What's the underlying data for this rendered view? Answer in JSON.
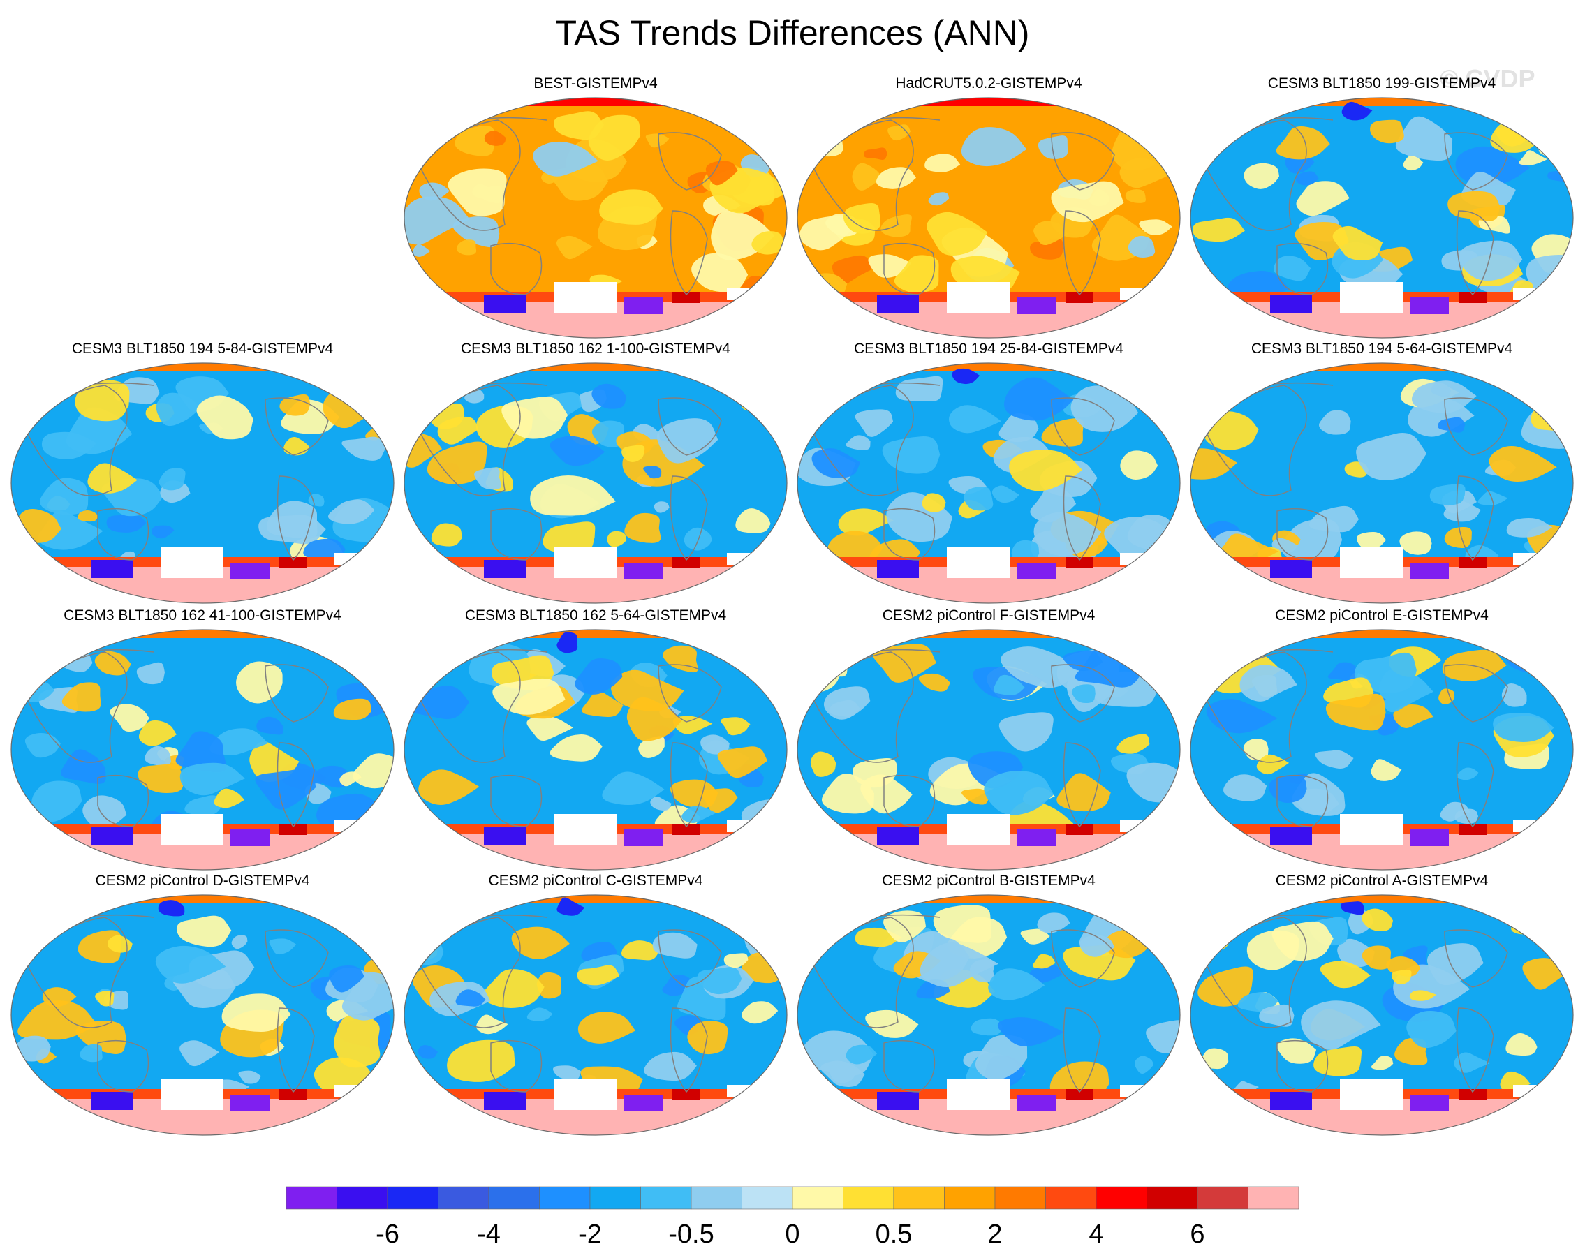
{
  "title": "TAS Trends Differences (ANN)",
  "watermark": "© CVDP",
  "colors": {
    "levels": [
      "#7f1ff0",
      "#3a0ff0",
      "#1a28f5",
      "#3a5ae0",
      "#2b70eb",
      "#1e90ff",
      "#12a8f2",
      "#40bdf5",
      "#8fcdef",
      "#bce2f5",
      "#fff9a8",
      "#ffe033",
      "#ffc21a",
      "#ffa200",
      "#ff7a00",
      "#ff4a10",
      "#ff0000",
      "#d10000",
      "#d43a3a",
      "#ffb3b3"
    ],
    "land_outline": "#808080",
    "nodata": "#ffffff"
  },
  "chart_data": {
    "type": "heatmap",
    "title": "TAS Trends Differences (ANN)",
    "colorbar": {
      "n_bins": 20,
      "tick_labels": [
        "-6",
        "-4",
        "-2",
        "-0.5",
        "0",
        "0.5",
        "2",
        "4",
        "6"
      ],
      "tick_bin_edges": [
        2,
        4,
        6,
        8,
        10,
        12,
        14,
        16,
        18
      ]
    },
    "panels": [
      {
        "title": "BEST-GISTEMPv4",
        "row": 0,
        "col": 1,
        "background_level": 13
      },
      {
        "title": "HadCRUT5.0.2-GISTEMPv4",
        "row": 0,
        "col": 2,
        "background_level": 13
      },
      {
        "title": "CESM3 BLT1850 199-GISTEMPv4",
        "row": 0,
        "col": 3,
        "background_level": 6
      },
      {
        "title": "CESM3 BLT1850 194 5-84-GISTEMPv4",
        "row": 1,
        "col": 0,
        "background_level": 6
      },
      {
        "title": "CESM3 BLT1850 162 1-100-GISTEMPv4",
        "row": 1,
        "col": 1,
        "background_level": 6
      },
      {
        "title": "CESM3 BLT1850 194 25-84-GISTEMPv4",
        "row": 1,
        "col": 2,
        "background_level": 6
      },
      {
        "title": "CESM3 BLT1850 194 5-64-GISTEMPv4",
        "row": 1,
        "col": 3,
        "background_level": 6
      },
      {
        "title": "CESM3 BLT1850 162 41-100-GISTEMPv4",
        "row": 2,
        "col": 0,
        "background_level": 6
      },
      {
        "title": "CESM3 BLT1850 162 5-64-GISTEMPv4",
        "row": 2,
        "col": 1,
        "background_level": 6
      },
      {
        "title": "CESM2 piControl F-GISTEMPv4",
        "row": 2,
        "col": 2,
        "background_level": 6
      },
      {
        "title": "CESM2 piControl E-GISTEMPv4",
        "row": 2,
        "col": 3,
        "background_level": 6
      },
      {
        "title": "CESM2 piControl D-GISTEMPv4",
        "row": 3,
        "col": 0,
        "background_level": 6
      },
      {
        "title": "CESM2 piControl C-GISTEMPv4",
        "row": 3,
        "col": 1,
        "background_level": 6
      },
      {
        "title": "CESM2 piControl B-GISTEMPv4",
        "row": 3,
        "col": 2,
        "background_level": 6
      },
      {
        "title": "CESM2 piControl A-GISTEMPv4",
        "row": 3,
        "col": 3,
        "background_level": 6
      }
    ]
  }
}
